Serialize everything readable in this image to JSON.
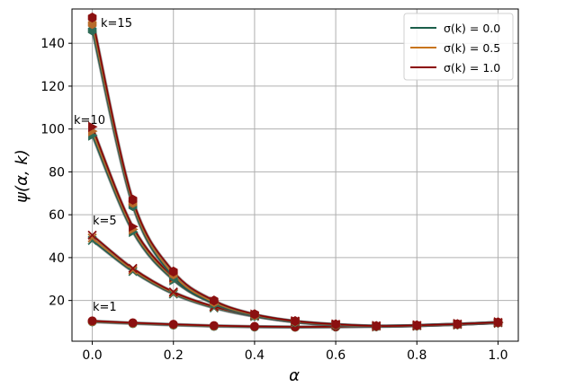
{
  "chart_data": {
    "type": "line",
    "xlabel": "α",
    "ylabel": "ψ(α, k)",
    "xlim": [
      -0.05,
      1.05
    ],
    "ylim": [
      1,
      156
    ],
    "x_ticks": [
      0.0,
      0.2,
      0.4,
      0.6,
      0.8,
      1.0
    ],
    "x_tick_labels": [
      "0.0",
      "0.2",
      "0.4",
      "0.6",
      "0.8",
      "1.0"
    ],
    "y_ticks": [
      20,
      40,
      60,
      80,
      100,
      120,
      140
    ],
    "y_tick_labels": [
      "20",
      "40",
      "60",
      "80",
      "100",
      "120",
      "140"
    ],
    "grid": true,
    "legend_position": "top-right",
    "x": [
      0.0,
      0.1,
      0.2,
      0.3,
      0.4,
      0.5,
      0.6,
      0.7,
      0.8,
      0.9,
      1.0
    ],
    "groups": [
      {
        "k": 1,
        "annotation": "k=1",
        "series": [
          {
            "sigma": "0.0",
            "values": [
              10.0,
              9.2,
              8.5,
              7.9,
              7.6,
              7.5,
              7.6,
              7.8,
              8.2,
              8.8,
              9.6
            ]
          },
          {
            "sigma": "0.5",
            "values": [
              10.2,
              9.4,
              8.7,
              8.1,
              7.8,
              7.6,
              7.7,
              7.9,
              8.3,
              8.9,
              9.7
            ]
          },
          {
            "sigma": "1.0",
            "values": [
              10.5,
              9.6,
              8.9,
              8.3,
              7.9,
              7.7,
              7.8,
              8.0,
              8.4,
              9.0,
              9.8
            ]
          }
        ]
      },
      {
        "k": 5,
        "annotation": "k=5",
        "series": [
          {
            "sigma": "0.0",
            "values": [
              48.0,
              33.5,
              23.0,
              16.5,
              12.5,
              10.0,
              8.6,
              8.0,
              8.2,
              8.8,
              9.6
            ]
          },
          {
            "sigma": "0.5",
            "values": [
              49.2,
              34.2,
              23.5,
              16.9,
              12.8,
              10.2,
              8.8,
              8.1,
              8.3,
              8.9,
              9.7
            ]
          },
          {
            "sigma": "1.0",
            "values": [
              50.5,
              35.0,
              24.0,
              17.2,
              13.0,
              10.4,
              8.9,
              8.2,
              8.4,
              9.0,
              9.8
            ]
          }
        ]
      },
      {
        "k": 10,
        "annotation": "k=10",
        "series": [
          {
            "sigma": "0.0",
            "values": [
              97.0,
              52.0,
              29.5,
              18.5,
              12.8,
              9.9,
              8.5,
              7.9,
              8.2,
              8.8,
              9.6
            ]
          },
          {
            "sigma": "0.5",
            "values": [
              99.0,
              53.2,
              30.3,
              19.0,
              13.1,
              10.1,
              8.7,
              8.0,
              8.3,
              8.9,
              9.7
            ]
          },
          {
            "sigma": "1.0",
            "values": [
              101.0,
              54.5,
              31.0,
              19.4,
              13.4,
              10.3,
              8.8,
              8.1,
              8.4,
              9.0,
              9.8
            ]
          }
        ]
      },
      {
        "k": 15,
        "annotation": "k=15",
        "series": [
          {
            "sigma": "0.0",
            "values": [
              146.0,
              64.0,
              31.0,
              18.5,
              12.8,
              9.9,
              8.5,
              7.9,
              8.2,
              8.8,
              9.6
            ]
          },
          {
            "sigma": "0.5",
            "values": [
              149.0,
              65.5,
              32.2,
              19.2,
              13.2,
              10.2,
              8.7,
              8.0,
              8.3,
              8.9,
              9.7
            ]
          },
          {
            "sigma": "1.0",
            "values": [
              152.0,
              67.0,
              33.5,
              20.0,
              13.6,
              10.4,
              8.9,
              8.1,
              8.4,
              9.0,
              9.8
            ]
          }
        ]
      }
    ],
    "legend": [
      {
        "label": "σ(k) = 0.0",
        "color": "#1b5e4a"
      },
      {
        "label": "σ(k) = 0.5",
        "color": "#c8741c"
      },
      {
        "label": "σ(k) = 1.0",
        "color": "#8b0000"
      }
    ],
    "marker_colors": {
      "0.0": "#2e6b57",
      "0.5": "#b86a2a",
      "1.0": "#8b1010"
    },
    "marker_shapes": {
      "1": "circle",
      "5": "x",
      "10": "triangle-right",
      "15": "hexagon"
    }
  }
}
